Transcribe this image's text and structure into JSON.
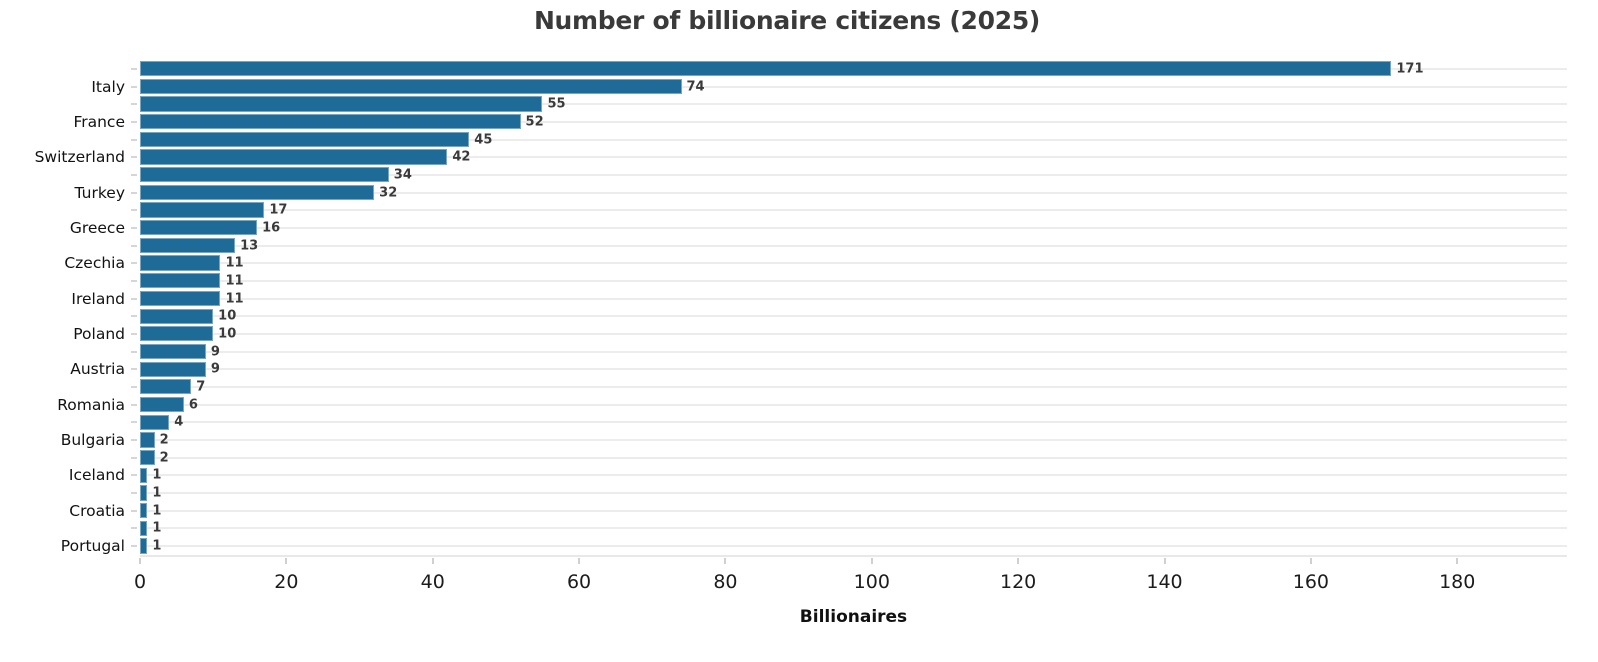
{
  "chart_data": {
    "type": "bar",
    "orientation": "horizontal",
    "title": "Number of billionaire citizens (2025)",
    "xlabel": "Billionaires",
    "ylabel": "",
    "categories": [
      "",
      "Italy",
      "",
      "France",
      "",
      "Switzerland",
      "",
      "Turkey",
      "",
      "Greece",
      "",
      "Czechia",
      "",
      "Ireland",
      "",
      "Poland",
      "",
      "Austria",
      "",
      "Romania",
      "",
      "Bulgaria",
      "",
      "Iceland",
      "",
      "Croatia",
      "",
      "Portugal"
    ],
    "values": [
      171,
      74,
      55,
      52,
      45,
      42,
      34,
      32,
      17,
      16,
      13,
      11,
      11,
      11,
      10,
      10,
      9,
      9,
      7,
      6,
      4,
      2,
      2,
      1,
      1,
      1,
      1,
      1
    ],
    "visible_y_tick_labels": [
      "Italy",
      "France",
      "Switzerland",
      "Turkey",
      "Greece",
      "Czechia",
      "Ireland",
      "Poland",
      "Austria",
      "Romania",
      "Bulgaria",
      "Iceland",
      "Croatia",
      "Portugal"
    ],
    "x_ticks": [
      0,
      20,
      40,
      60,
      80,
      100,
      120,
      140,
      160,
      180
    ],
    "xlim": [
      0,
      195
    ],
    "value_labels_shown": true,
    "legend": "none",
    "grid": "light horizontal gridline at every bar row; y tick labels shown only on every other bar",
    "colors": {
      "bar": "#1f6b97",
      "bar_edge": "#ffffff",
      "gridline": "#ececec",
      "axis_tick": "#d6d6d6",
      "title_text": "#3a3a3a",
      "value_label_text": "#3a3a3a",
      "axis_label_text": "#111111",
      "tick_label_text": "#1c1c1c",
      "background": "#ffffff"
    }
  }
}
